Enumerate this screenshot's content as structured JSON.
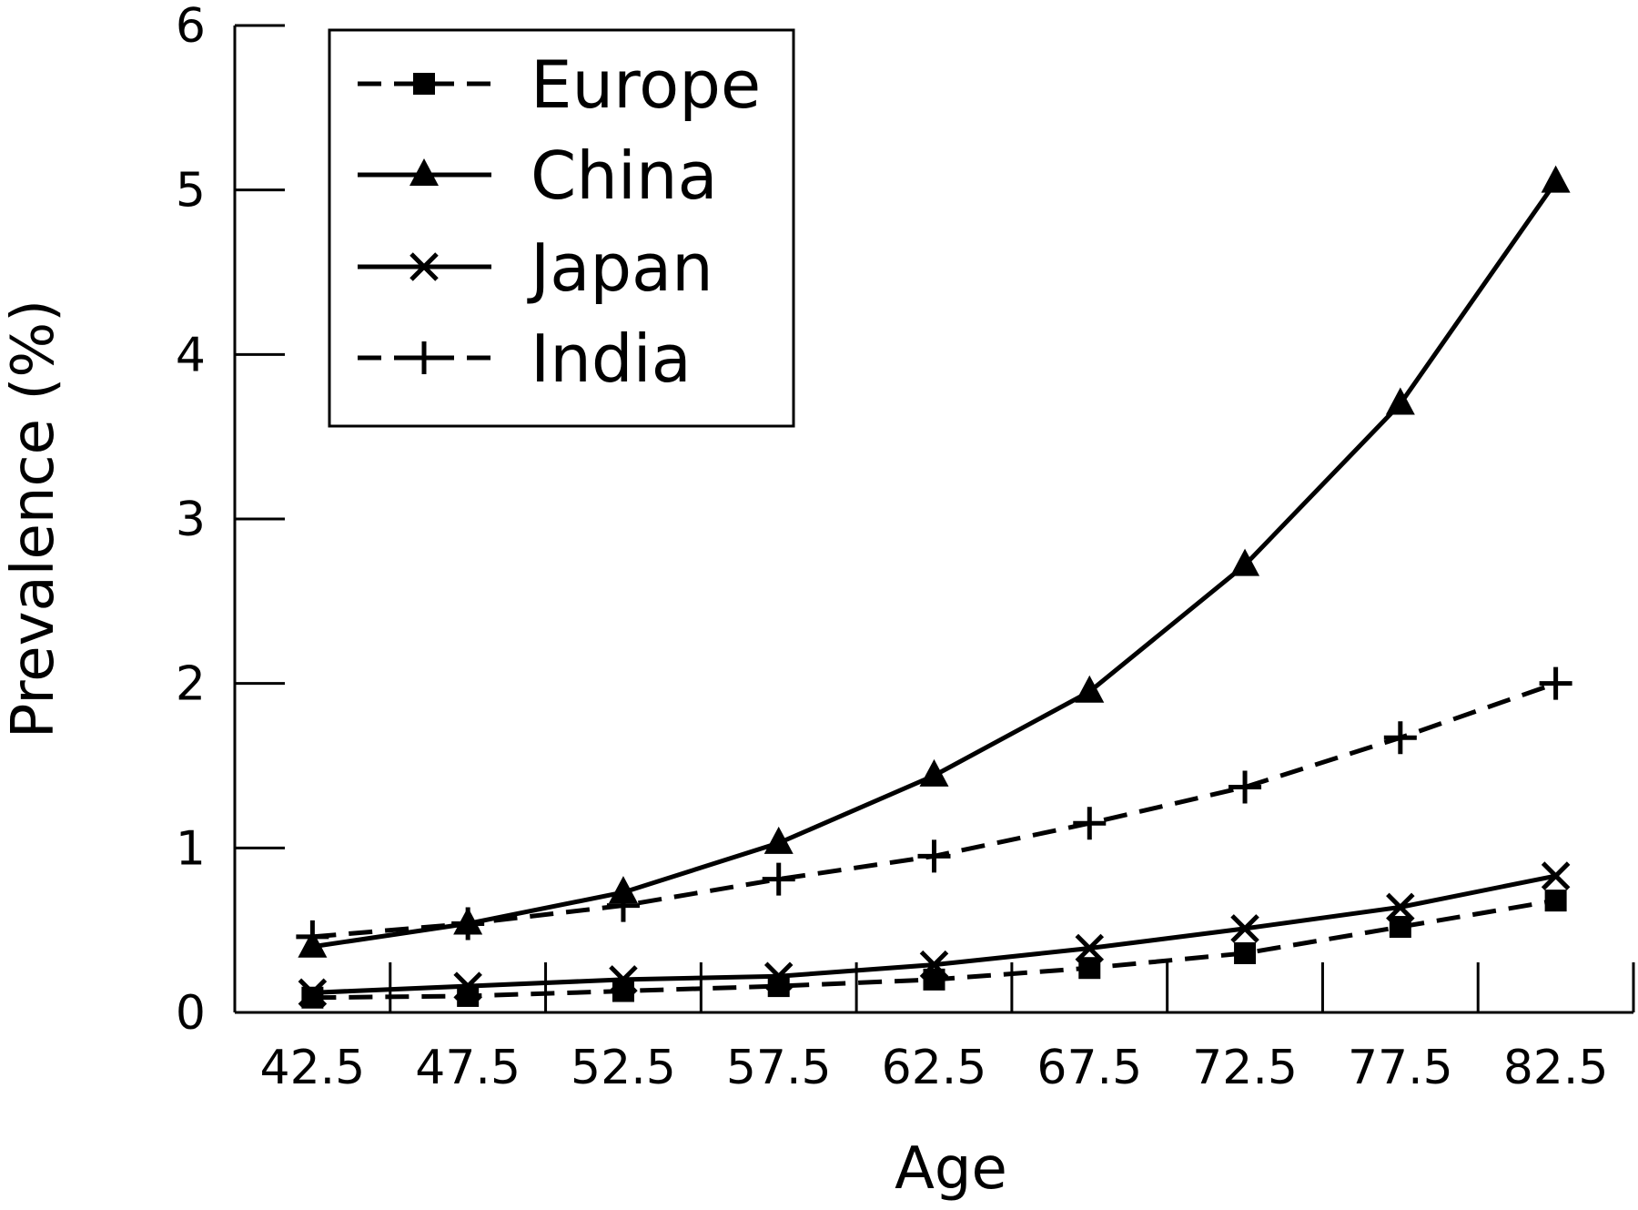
{
  "chart_data": {
    "type": "line",
    "xlabel": "Age",
    "ylabel": "Prevalence (%)",
    "x": [
      42.5,
      47.5,
      52.5,
      57.5,
      62.5,
      67.5,
      72.5,
      77.5,
      82.5
    ],
    "x_tick_labels": [
      "42.5",
      "47.5",
      "52.5",
      "57.5",
      "62.5",
      "67.5",
      "72.5",
      "77.5",
      "82.5"
    ],
    "xlim": [
      40,
      85
    ],
    "ylim": [
      0,
      6
    ],
    "y_ticks": [
      0,
      1,
      2,
      3,
      4,
      5,
      6
    ],
    "y_tick_labels": [
      "0",
      "1",
      "2",
      "3",
      "4",
      "5",
      "6"
    ],
    "grid": false,
    "legend_position": "top-left",
    "series": [
      {
        "name": "Europe",
        "marker": "square",
        "line_style": "dashed",
        "values": [
          0.09,
          0.1,
          0.13,
          0.16,
          0.2,
          0.27,
          0.36,
          0.52,
          0.68
        ]
      },
      {
        "name": "China",
        "marker": "triangle",
        "line_style": "solid",
        "values": [
          0.4,
          0.54,
          0.73,
          1.03,
          1.44,
          1.95,
          2.72,
          3.7,
          5.05
        ]
      },
      {
        "name": "Japan",
        "marker": "x",
        "line_style": "solid",
        "values": [
          0.12,
          0.16,
          0.2,
          0.22,
          0.29,
          0.39,
          0.51,
          0.64,
          0.83
        ]
      },
      {
        "name": "India",
        "marker": "plus",
        "line_style": "dashed",
        "values": [
          0.46,
          0.54,
          0.65,
          0.81,
          0.95,
          1.15,
          1.37,
          1.67,
          2.0
        ]
      }
    ]
  }
}
